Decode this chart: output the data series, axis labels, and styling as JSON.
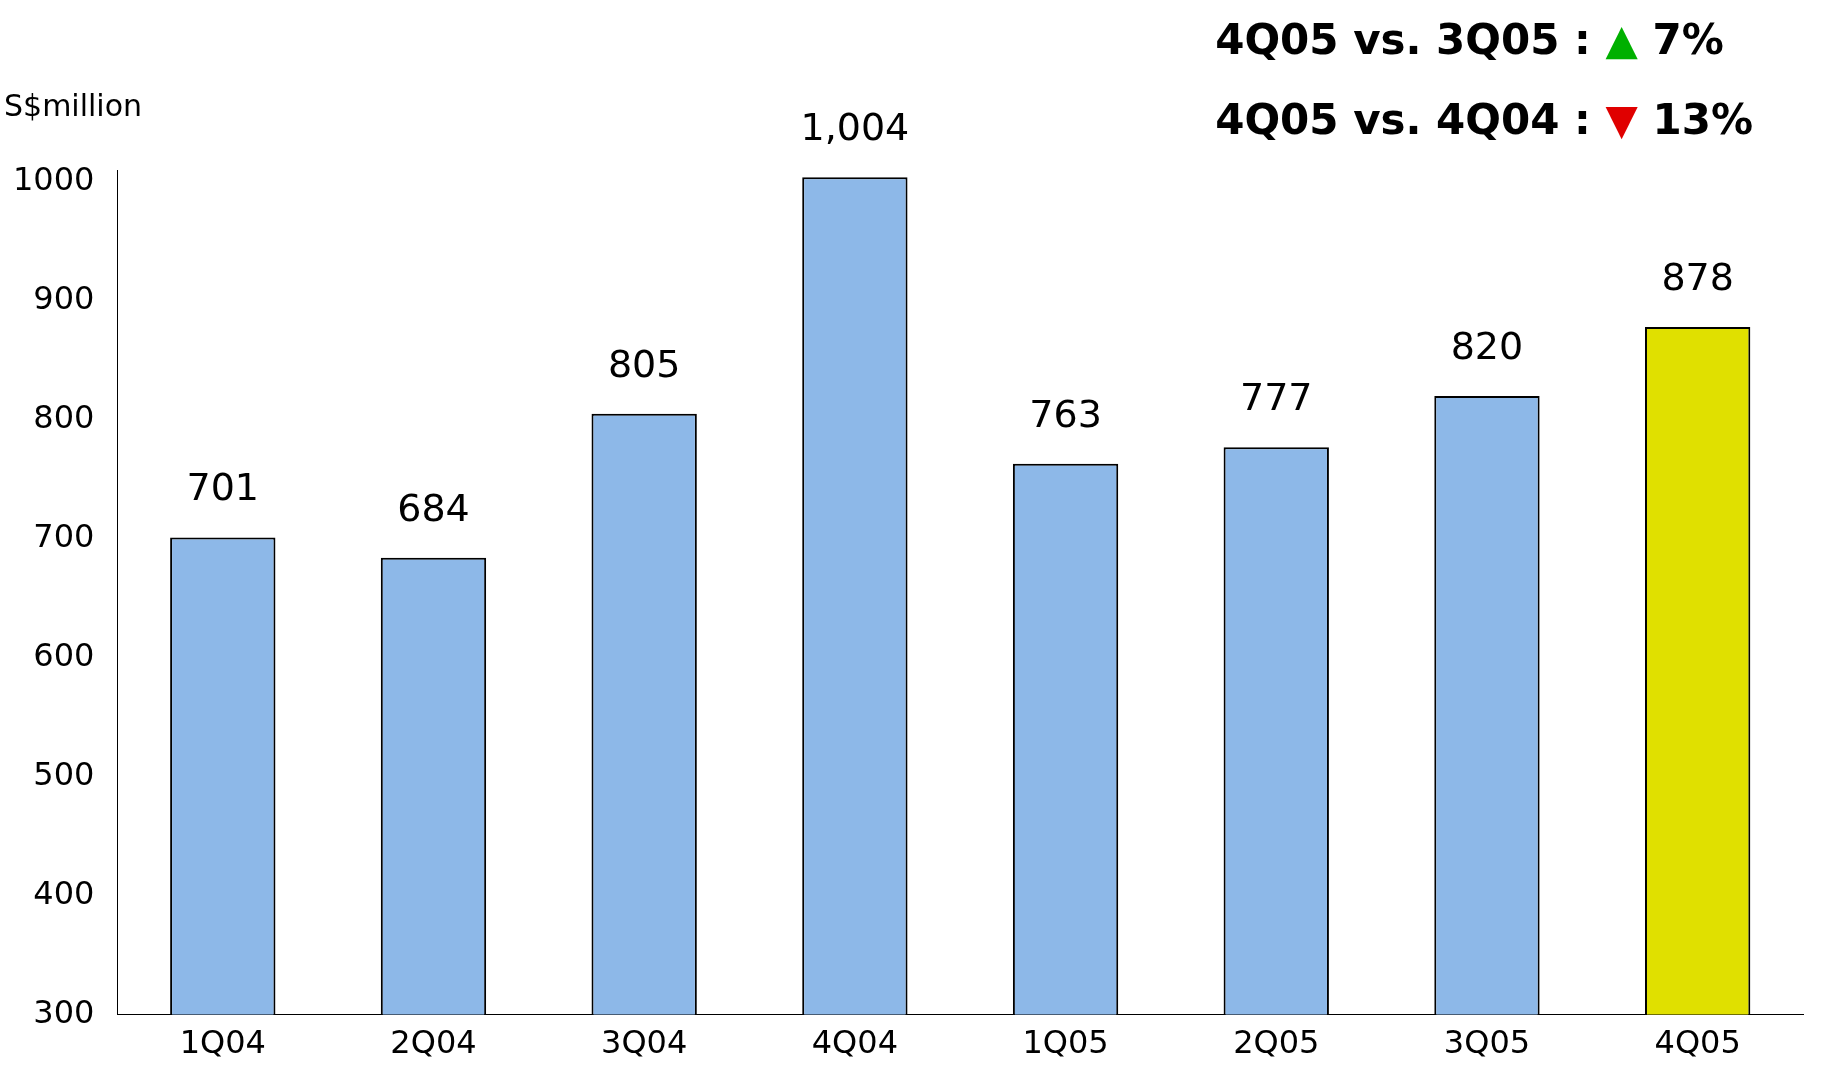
{
  "chart_data": {
    "type": "bar",
    "ylabel": "S$million",
    "categories": [
      "1Q04",
      "2Q04",
      "3Q04",
      "4Q04",
      "1Q05",
      "2Q05",
      "3Q05",
      "4Q05"
    ],
    "values": [
      701,
      684,
      805,
      1004,
      763,
      777,
      820,
      878
    ],
    "colors": [
      "#8db8e8",
      "#8db8e8",
      "#8db8e8",
      "#8db8e8",
      "#8db8e8",
      "#8db8e8",
      "#8db8e8",
      "#e0e000"
    ],
    "ylim": [
      300,
      1010
    ],
    "yticks": [
      300,
      400,
      500,
      600,
      700,
      800,
      900,
      1000
    ],
    "value_labels": [
      "701",
      "684",
      "805",
      "1,004",
      "763",
      "777",
      "820",
      "878"
    ],
    "grid": false,
    "legend": false,
    "annotations": [
      "4Q05 vs. 3Q05 : ▲ 7%",
      "4Q05 vs. 4Q04 : ▼ 13%"
    ]
  }
}
